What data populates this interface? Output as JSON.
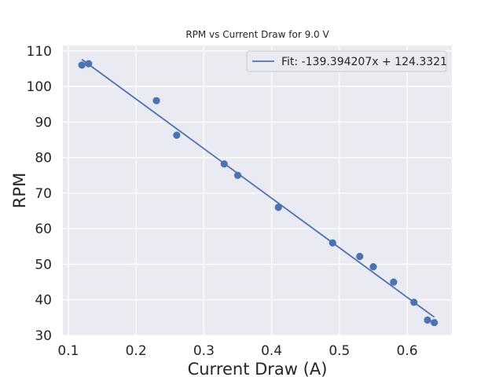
{
  "chart_data": {
    "type": "scatter",
    "title": "RPM vs Current Draw for 9.0 V",
    "xlabel": "Current Draw (A)",
    "ylabel": "RPM",
    "xlim": [
      0.092,
      0.666
    ],
    "ylim": [
      30,
      111.5
    ],
    "xticks": [
      0.1,
      0.2,
      0.3,
      0.4,
      0.5,
      0.6
    ],
    "xtick_labels": [
      "0.1",
      "0.2",
      "0.3",
      "0.4",
      "0.5",
      "0.6"
    ],
    "yticks": [
      30,
      40,
      50,
      60,
      70,
      80,
      90,
      100,
      110
    ],
    "ytick_labels": [
      "30",
      "40",
      "50",
      "60",
      "70",
      "80",
      "90",
      "100",
      "110"
    ],
    "grid": true,
    "legend_position": "top-right",
    "series": [
      {
        "kind": "scatter",
        "x": [
          0.12,
          0.13,
          0.23,
          0.26,
          0.33,
          0.35,
          0.41,
          0.49,
          0.53,
          0.55,
          0.58,
          0.61,
          0.63,
          0.64
        ],
        "y": [
          106.0,
          106.4,
          96.0,
          86.3,
          78.2,
          75.0,
          66.0,
          56.0,
          52.2,
          49.3,
          45.0,
          39.3,
          34.3,
          33.6
        ]
      },
      {
        "kind": "line",
        "name": "Fit: -139.394207x + 124.3321",
        "slope": -139.394207,
        "intercept": 124.3321,
        "x_range": [
          0.12,
          0.64
        ]
      }
    ],
    "colors": {
      "series": "#4c72b0",
      "plot_background": "#eaeaf2",
      "grid": "#ffffff",
      "text": "#262626"
    }
  }
}
